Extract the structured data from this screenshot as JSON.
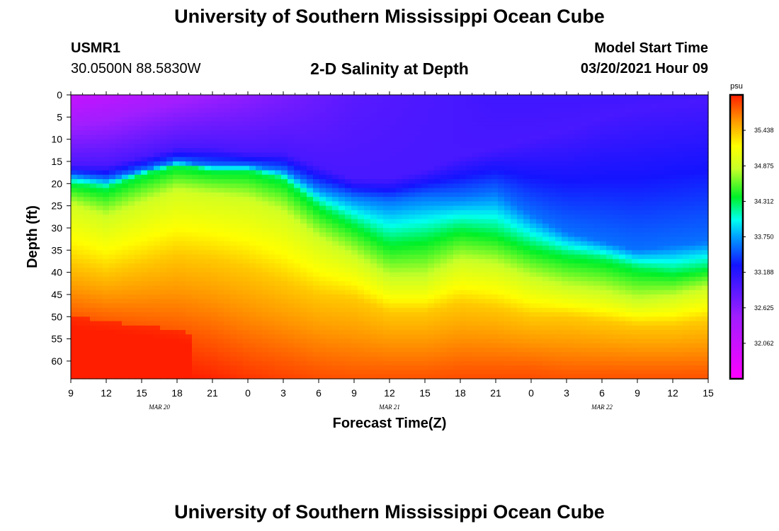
{
  "header": {
    "title": "University of Southern Mississippi Ocean Cube",
    "station_id": "USMR1",
    "station_coords": "30.0500N 88.5830W",
    "subtitle": "2-D Salinity at Depth",
    "start_time_label": "Model Start Time",
    "start_time_value": "03/20/2021 Hour 09"
  },
  "footer": {
    "title": "University of Southern Mississippi Ocean Cube"
  },
  "chart_data": {
    "type": "heatmap",
    "title": "2-D Salinity at Depth",
    "xlabel": "Forecast Time(Z)",
    "ylabel": "Depth (ft)",
    "x_hours_from_start": [
      0,
      54
    ],
    "x_tick_labels": [
      "9",
      "12",
      "15",
      "18",
      "21",
      "0",
      "3",
      "6",
      "9",
      "12",
      "15",
      "18",
      "21",
      "0",
      "3",
      "6",
      "9",
      "12",
      "15"
    ],
    "date_labels": [
      {
        "text": "MAR 20",
        "at_tick": 2.5
      },
      {
        "text": "MAR 21",
        "at_tick": 9
      },
      {
        "text": "MAR 22",
        "at_tick": 15
      }
    ],
    "y_ticks": [
      0,
      5,
      10,
      15,
      20,
      25,
      30,
      35,
      40,
      45,
      50,
      55,
      60
    ],
    "ylim": [
      0,
      64
    ],
    "y_inverted": true,
    "colorbar": {
      "unit": "psu",
      "range": [
        31.5,
        36.0
      ],
      "tick_values": [
        35.438,
        34.875,
        34.312,
        33.75,
        33.188,
        32.625,
        32.062
      ],
      "tick_labels": [
        "35.438",
        "34.875",
        "34.312",
        "33.750",
        "33.188",
        "32.625",
        "32.062"
      ]
    },
    "grid_hours": [
      0,
      3,
      6,
      9,
      12,
      15,
      18,
      21,
      24,
      27,
      30,
      33,
      36,
      39,
      42,
      45,
      48,
      51,
      54
    ],
    "isolines_depth_ft": {
      "s33_0": [
        16,
        16,
        14,
        12,
        12,
        13,
        13,
        16,
        19,
        19,
        17,
        14,
        12,
        10,
        8,
        5,
        3,
        2,
        1
      ],
      "s33_6": [
        18,
        19,
        17,
        15,
        16,
        16,
        17,
        21,
        23,
        24,
        23,
        23,
        22,
        27,
        31,
        33,
        35,
        34,
        33
      ],
      "s34_3": [
        20,
        21,
        18,
        16,
        17,
        17,
        19,
        25,
        29,
        33,
        32,
        30,
        31,
        34,
        36,
        37,
        39,
        40,
        39
      ],
      "s34_9": [
        25,
        28,
        25,
        22,
        23,
        24,
        27,
        33,
        37,
        42,
        42,
        38,
        39,
        42,
        44,
        45,
        47,
        46,
        44
      ],
      "s35_4": [
        38,
        40,
        38,
        36,
        37,
        39,
        42,
        45,
        46,
        49,
        49,
        47,
        48,
        50,
        50,
        51,
        52,
        52,
        51
      ],
      "s35_8": [
        50,
        51,
        52,
        53,
        55,
        58,
        60,
        62,
        63,
        63,
        63,
        62,
        62,
        62,
        63,
        63,
        63,
        63,
        63
      ]
    }
  }
}
